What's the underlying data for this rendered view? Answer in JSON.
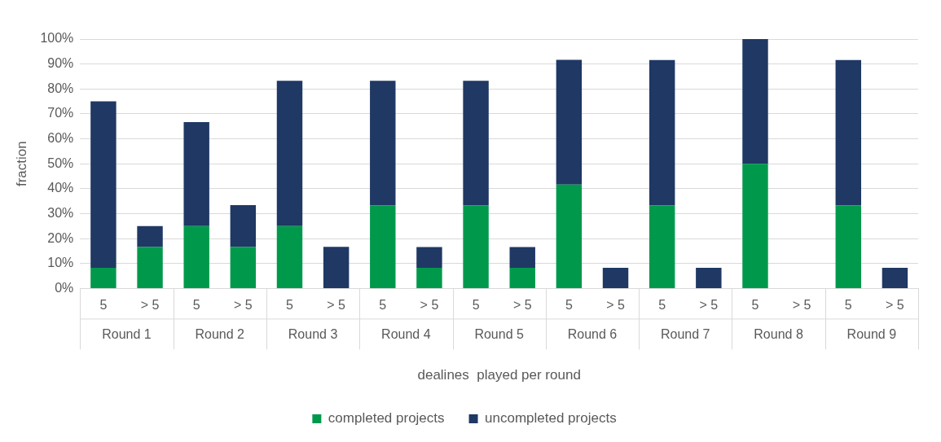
{
  "chart_data": {
    "type": "bar",
    "stacked": true,
    "xlabel": "dealines  played per round",
    "ylabel": "fraction",
    "categories": [
      "5",
      "> 5",
      "5",
      "> 5",
      "5",
      "> 5",
      "5",
      "> 5",
      "5",
      "> 5",
      "5",
      "> 5",
      "5",
      "> 5",
      "5",
      "> 5",
      "5",
      "> 5"
    ],
    "annotations": [
      "Round 1",
      "Round 2",
      "Round 3",
      "Round 4",
      "Round 5",
      "Round 6",
      "Round 7",
      "Round 8",
      "Round 9"
    ],
    "series": [
      {
        "name": "completed projects",
        "color": "#00994c",
        "values": [
          8.3,
          16.7,
          25,
          16.7,
          25,
          0,
          33.3,
          8.3,
          33.3,
          8.3,
          41.7,
          0,
          33.3,
          0,
          50,
          0,
          33.3,
          0
        ]
      },
      {
        "name": "uncompleted projects",
        "color": "#1f3864",
        "values": [
          66.7,
          8.3,
          41.7,
          16.7,
          58.3,
          16.7,
          50,
          8.3,
          50,
          8.3,
          50,
          8.3,
          58.3,
          8.3,
          50,
          0,
          58.3,
          8.3
        ]
      }
    ],
    "ylim": [
      0,
      100
    ],
    "yticks": [
      {
        "value": 0,
        "label": "0%"
      },
      {
        "value": 10,
        "label": "10%"
      },
      {
        "value": 20,
        "label": "20%"
      },
      {
        "value": 30,
        "label": "30%"
      },
      {
        "value": 40,
        "label": "40%"
      },
      {
        "value": 50,
        "label": "50%"
      },
      {
        "value": 60,
        "label": "60%"
      },
      {
        "value": 70,
        "label": "70%"
      },
      {
        "value": 80,
        "label": "80%"
      },
      {
        "value": 90,
        "label": "90%"
      },
      {
        "value": 100,
        "label": "100%"
      }
    ],
    "grid": "y",
    "legend": "bottom"
  }
}
